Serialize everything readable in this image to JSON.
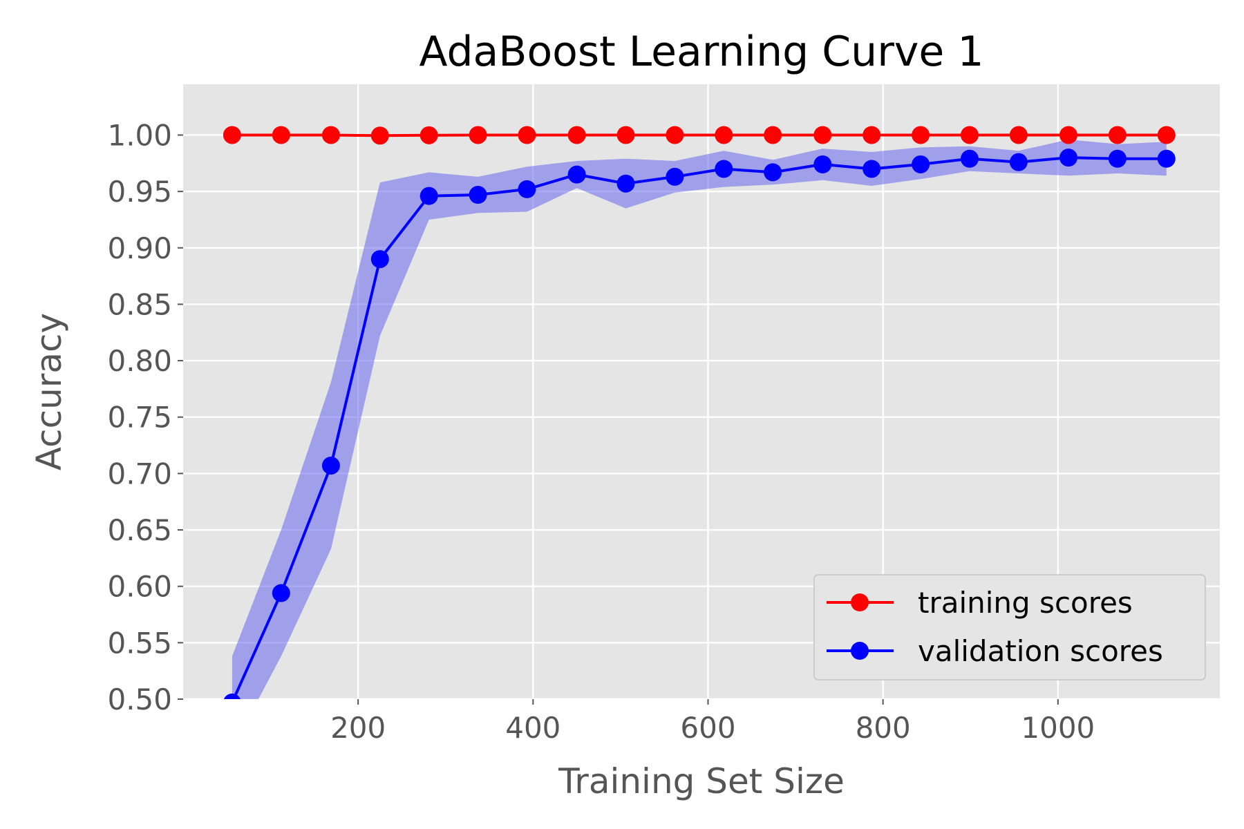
{
  "chart_data": {
    "type": "line",
    "title": "AdaBoost Learning Curve 1",
    "xlabel": "Training Set Size",
    "ylabel": "Accuracy",
    "xlim": [
      0,
      1185
    ],
    "ylim": [
      0.5,
      1.045
    ],
    "xticks": [
      200,
      400,
      600,
      800,
      1000
    ],
    "xtick_labels": [
      "200",
      "400",
      "600",
      "800",
      "1000"
    ],
    "yticks": [
      0.5,
      0.55,
      0.6,
      0.65,
      0.7,
      0.75,
      0.8,
      0.85,
      0.9,
      0.95,
      1.0
    ],
    "ytick_labels": [
      "0.50",
      "0.55",
      "0.60",
      "0.65",
      "0.70",
      "0.75",
      "0.80",
      "0.85",
      "0.90",
      "0.95",
      "1.00"
    ],
    "grid": true,
    "legend_position": "lower-right",
    "x": [
      56,
      112,
      169,
      225,
      281,
      337,
      393,
      450,
      506,
      562,
      618,
      674,
      731,
      787,
      843,
      899,
      955,
      1012,
      1068,
      1124
    ],
    "series": [
      {
        "name": "training scores",
        "color": "#ff0000",
        "values": [
          1.0,
          1.0,
          1.0,
          0.9995,
          0.9998,
          1.0,
          1.0,
          1.0,
          1.0,
          1.0,
          1.0,
          1.0,
          1.0,
          1.0,
          1.0,
          1.0,
          1.0,
          1.0,
          1.0,
          1.0
        ]
      },
      {
        "name": "validation scores",
        "color": "#0000ff",
        "band_color": "#6666ee",
        "values": [
          0.497,
          0.594,
          0.707,
          0.89,
          0.946,
          0.947,
          0.952,
          0.965,
          0.957,
          0.963,
          0.97,
          0.967,
          0.974,
          0.97,
          0.974,
          0.979,
          0.976,
          0.98,
          0.979,
          0.979
        ],
        "band_upper": [
          0.538,
          0.65,
          0.781,
          0.958,
          0.967,
          0.963,
          0.972,
          0.977,
          0.979,
          0.977,
          0.986,
          0.978,
          0.988,
          0.985,
          0.989,
          0.99,
          0.986,
          0.996,
          0.992,
          0.994
        ],
        "band_lower": [
          0.456,
          0.538,
          0.633,
          0.822,
          0.925,
          0.931,
          0.932,
          0.953,
          0.935,
          0.949,
          0.954,
          0.956,
          0.96,
          0.955,
          0.961,
          0.968,
          0.966,
          0.964,
          0.966,
          0.964
        ]
      }
    ]
  }
}
